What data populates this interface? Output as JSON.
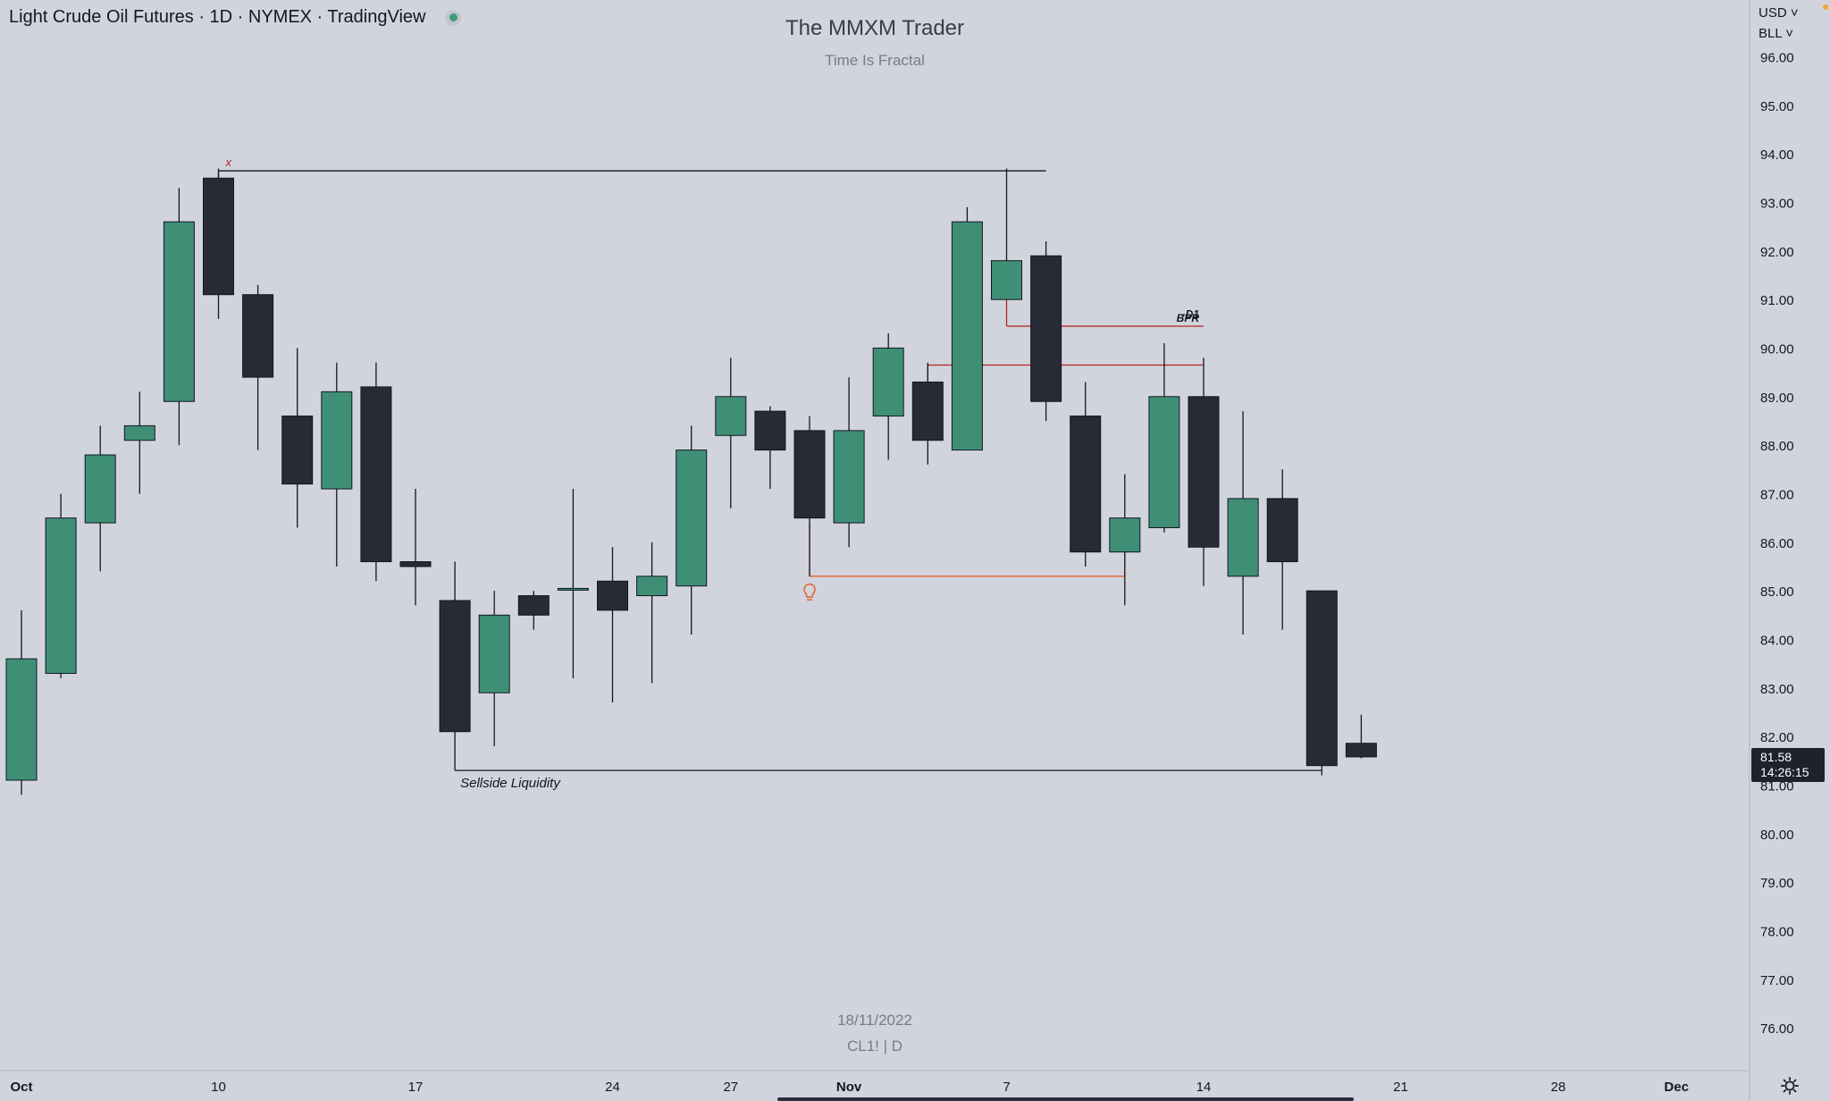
{
  "header": {
    "symbol_title": "Light Crude Oil Futures · 1D · NYMEX · TradingView"
  },
  "watermark": {
    "title": "The MMXM Trader",
    "subtitle": "Time Is Fractal",
    "date": "18/11/2022",
    "symbol": "CL1! | D"
  },
  "price_scale": {
    "currency_menu": "USD",
    "unit_menu": "BLL"
  },
  "colors": {
    "background": "#d1d4dc",
    "up_candle": "#3f8f76",
    "down_candle": "#282b35",
    "wick": "#131722",
    "annotation_red": "#b22222",
    "annotation_orange": "#e0602a",
    "price_label_bg": "#1e222d"
  },
  "chart_data": {
    "type": "candlestick",
    "title": "Light Crude Oil Futures · 1D · NYMEX · TradingView",
    "grid": false,
    "ylim": [
      75.2,
      97.2
    ],
    "y_ticks": [
      "96.00",
      "95.00",
      "94.00",
      "93.00",
      "92.00",
      "91.00",
      "90.00",
      "89.00",
      "88.00",
      "87.00",
      "86.00",
      "85.00",
      "84.00",
      "83.00",
      "82.00",
      "81.00",
      "80.00",
      "79.00",
      "78.00",
      "77.00",
      "76.00"
    ],
    "x_tick_labels": [
      {
        "label": "Oct",
        "index": 0
      },
      {
        "label": "10",
        "index": 5
      },
      {
        "label": "17",
        "index": 10
      },
      {
        "label": "24",
        "index": 15
      },
      {
        "label": "27",
        "index": 18
      },
      {
        "label": "Nov",
        "index": 21
      },
      {
        "label": "7",
        "index": 25
      },
      {
        "label": "14",
        "index": 30
      },
      {
        "label": "21",
        "index": 35
      },
      {
        "label": "28",
        "index": 39
      },
      {
        "label": "Dec",
        "index": 42
      }
    ],
    "candles": [
      {
        "o": 81.1,
        "h": 84.6,
        "l": 80.8,
        "c": 83.6
      },
      {
        "o": 83.3,
        "h": 87.0,
        "l": 83.2,
        "c": 86.5
      },
      {
        "o": 86.4,
        "h": 88.4,
        "l": 85.4,
        "c": 87.8
      },
      {
        "o": 88.1,
        "h": 89.1,
        "l": 87.0,
        "c": 88.4
      },
      {
        "o": 88.9,
        "h": 93.3,
        "l": 88.0,
        "c": 92.6
      },
      {
        "o": 93.5,
        "h": 93.7,
        "l": 90.6,
        "c": 91.1
      },
      {
        "o": 91.1,
        "h": 91.3,
        "l": 87.9,
        "c": 89.4
      },
      {
        "o": 88.6,
        "h": 90.0,
        "l": 86.3,
        "c": 87.2
      },
      {
        "o": 87.1,
        "h": 89.7,
        "l": 85.5,
        "c": 89.1
      },
      {
        "o": 89.2,
        "h": 89.7,
        "l": 85.2,
        "c": 85.6
      },
      {
        "o": 85.6,
        "h": 87.1,
        "l": 84.7,
        "c": 85.5
      },
      {
        "o": 84.8,
        "h": 85.6,
        "l": 81.8,
        "c": 82.1
      },
      {
        "o": 82.9,
        "h": 85.0,
        "l": 81.8,
        "c": 84.5
      },
      {
        "o": 84.9,
        "h": 85.0,
        "l": 84.2,
        "c": 84.5
      },
      {
        "o": 85.05,
        "h": 87.1,
        "l": 83.2,
        "c": 85.05
      },
      {
        "o": 85.2,
        "h": 85.9,
        "l": 82.7,
        "c": 84.6
      },
      {
        "o": 84.9,
        "h": 86.0,
        "l": 83.1,
        "c": 85.3
      },
      {
        "o": 85.1,
        "h": 88.4,
        "l": 84.1,
        "c": 87.9
      },
      {
        "o": 88.2,
        "h": 89.8,
        "l": 86.7,
        "c": 89.0
      },
      {
        "o": 88.7,
        "h": 88.8,
        "l": 87.1,
        "c": 87.9
      },
      {
        "o": 88.3,
        "h": 88.6,
        "l": 85.3,
        "c": 86.5
      },
      {
        "o": 86.4,
        "h": 89.4,
        "l": 85.9,
        "c": 88.3
      },
      {
        "o": 88.6,
        "h": 90.3,
        "l": 87.7,
        "c": 90.0
      },
      {
        "o": 89.3,
        "h": 89.7,
        "l": 87.6,
        "c": 88.1
      },
      {
        "o": 87.9,
        "h": 92.9,
        "l": 87.9,
        "c": 92.6
      },
      {
        "o": 91.0,
        "h": 93.7,
        "l": 91.0,
        "c": 91.8
      },
      {
        "o": 91.9,
        "h": 92.2,
        "l": 88.5,
        "c": 88.9
      },
      {
        "o": 88.6,
        "h": 89.3,
        "l": 85.5,
        "c": 85.8
      },
      {
        "o": 85.8,
        "h": 87.4,
        "l": 84.7,
        "c": 86.5
      },
      {
        "o": 86.3,
        "h": 90.1,
        "l": 86.2,
        "c": 89.0
      },
      {
        "o": 89.0,
        "h": 89.8,
        "l": 85.1,
        "c": 85.9
      },
      {
        "o": 85.3,
        "h": 88.7,
        "l": 84.1,
        "c": 86.9
      },
      {
        "o": 86.9,
        "h": 87.5,
        "l": 84.2,
        "c": 85.6
      },
      {
        "o": 85.0,
        "h": 85.0,
        "l": 81.2,
        "c": 81.4
      },
      {
        "o": 81.86,
        "h": 82.45,
        "l": 81.55,
        "c": 81.58
      }
    ],
    "last_price": {
      "value": "81.58",
      "countdown": "14:26:15"
    },
    "annotations": {
      "top_high_marker": "x",
      "bpr_label_1": "-D1",
      "bpr_label_2": "BPR",
      "sellside_label": "Sellside Liquidity",
      "lines": [
        {
          "kind": "black",
          "from": 5,
          "to": 26,
          "price": 93.65
        },
        {
          "kind": "black",
          "from": 11,
          "to": 33,
          "price": 81.3
        },
        {
          "kind": "red",
          "from": 25,
          "to": 30,
          "price": 90.45
        },
        {
          "kind": "red",
          "from": 23,
          "to": 30,
          "price": 89.65
        },
        {
          "kind": "orange",
          "from": 20,
          "to": 28,
          "price": 85.3
        }
      ]
    }
  }
}
